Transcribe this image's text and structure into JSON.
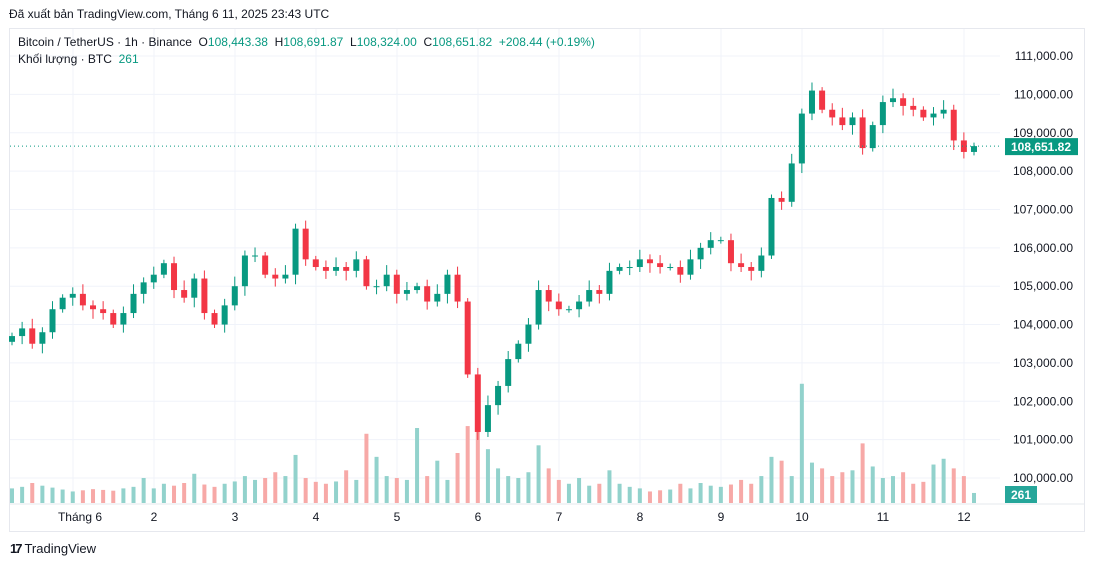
{
  "published": "Đã xuất bản TradingView.com, Tháng 6 11, 2025 23:43 UTC",
  "legend": {
    "symbol": "Bitcoin / TetherUS · 1h · Binance",
    "o_label": "O",
    "o": "108,443.38",
    "h_label": "H",
    "h": "108,691.87",
    "l_label": "L",
    "l": "108,324.00",
    "c_label": "C",
    "c": "108,651.82",
    "change": "+208.44 (+0.19%)",
    "volume_label": "Khối lượng · BTC",
    "volume": "261"
  },
  "footer": {
    "brand": "TradingView"
  },
  "colors": {
    "up": "#089981",
    "down": "#f23645",
    "up_volume": "#92d2cc",
    "down_volume": "#f7a9a7",
    "volume_badge": "#26a69a"
  },
  "chart_data": {
    "type": "candlestick",
    "symbol": "BTCUSDT",
    "interval": "1h",
    "y_ticks": [
      "111,000.00",
      "110,000.00",
      "109,000.00",
      "108,000.00",
      "107,000.00",
      "106,000.00",
      "105,000.00",
      "104,000.00",
      "103,000.00",
      "102,000.00",
      "101,000.00",
      "100,000.00"
    ],
    "ylim": [
      99350,
      111650
    ],
    "x_ticks": [
      "Tháng 6",
      "2",
      "3",
      "4",
      "5",
      "6",
      "7",
      "8",
      "9",
      "10",
      "11",
      "12"
    ],
    "last_price": 108651.82,
    "last_price_label": "108,651.82",
    "last_volume_label": "261",
    "grid": true,
    "closes": [
      103700,
      103900,
      103500,
      103800,
      104400,
      104700,
      104800,
      104500,
      104400,
      104300,
      104000,
      104300,
      104800,
      105100,
      105300,
      105600,
      104900,
      104700,
      105200,
      104300,
      104000,
      104500,
      105000,
      105800,
      105800,
      105300,
      105200,
      105300,
      106500,
      105700,
      105500,
      105400,
      105500,
      105400,
      105700,
      105000,
      105000,
      105300,
      104800,
      104900,
      105000,
      104600,
      104800,
      105300,
      104600,
      102700,
      101200,
      101900,
      102400,
      103100,
      103500,
      104000,
      104900,
      104600,
      104400,
      104400,
      104600,
      104900,
      104800,
      105400,
      105500,
      105500,
      105700,
      105600,
      105500,
      105500,
      105300,
      105700,
      106000,
      106200,
      106200,
      105600,
      105500,
      105400,
      105800,
      107300,
      107200,
      108200,
      109500,
      110100,
      109600,
      109400,
      109200,
      109400,
      108600,
      109200,
      109800,
      109900,
      109700,
      109600,
      109400,
      109500,
      109600,
      108800,
      108500,
      108651.82
    ],
    "volumes": [
      380,
      420,
      520,
      450,
      400,
      350,
      300,
      330,
      360,
      340,
      320,
      380,
      420,
      650,
      380,
      500,
      450,
      520,
      760,
      480,
      420,
      500,
      560,
      700,
      600,
      650,
      800,
      700,
      1250,
      650,
      550,
      500,
      560,
      850,
      600,
      1800,
      1200,
      700,
      650,
      600,
      1950,
      700,
      1100,
      600,
      1300,
      2000,
      2400,
      1400,
      900,
      700,
      650,
      800,
      1500,
      900,
      600,
      500,
      650,
      450,
      500,
      850,
      500,
      420,
      380,
      300,
      330,
      350,
      500,
      380,
      520,
      450,
      420,
      480,
      600,
      500,
      700,
      1200,
      1100,
      700,
      3100,
      1050,
      900,
      700,
      800,
      850,
      1550,
      950,
      650,
      700,
      800,
      500,
      550,
      1000,
      1150,
      900,
      700,
      261
    ]
  }
}
